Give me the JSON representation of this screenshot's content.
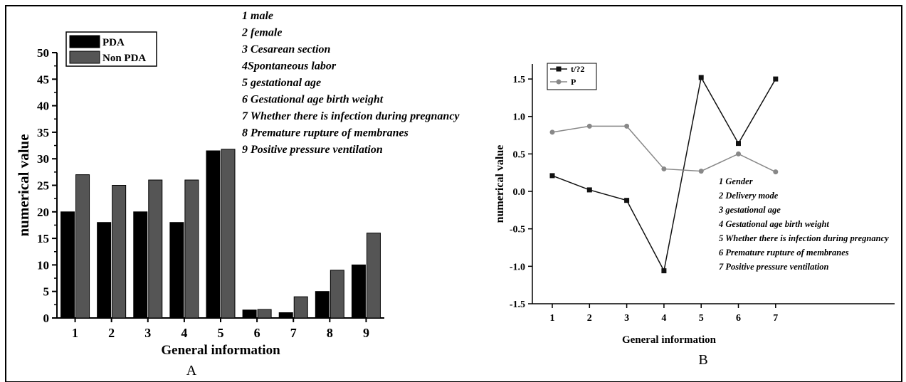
{
  "panel_labels": {
    "a": "A",
    "b": "B"
  },
  "chart_data": [
    {
      "type": "bar",
      "xlabel": "General information",
      "ylabel": "numerical value",
      "categories": [
        "1",
        "2",
        "3",
        "4",
        "5",
        "6",
        "7",
        "8",
        "9"
      ],
      "ylim": [
        0,
        50
      ],
      "yticks": [
        "0",
        "5",
        "10",
        "15",
        "20",
        "25",
        "30",
        "35",
        "40",
        "45",
        "50"
      ],
      "series": [
        {
          "name": "PDA",
          "color": "#000000",
          "values": [
            20,
            18,
            20,
            18,
            31.5,
            1.5,
            1,
            5,
            10
          ]
        },
        {
          "name": "Non PDA",
          "color": "#555555",
          "values": [
            27,
            25,
            26,
            26,
            31.8,
            1.6,
            4,
            9,
            16
          ]
        }
      ],
      "legend_position": "top-left",
      "annotations": [
        "1 male",
        "2 female",
        "3 Cesarean section",
        "4Spontaneous labor",
        "5 gestational age",
        "6 Gestational age birth weight",
        "7 Whether there is infection during pregnancy",
        "8 Premature rupture of membranes",
        "9 Positive pressure ventilation"
      ]
    },
    {
      "type": "line",
      "xlabel": "General information",
      "ylabel": "numerical value",
      "x": [
        "1",
        "2",
        "3",
        "4",
        "5",
        "6",
        "7"
      ],
      "ylim": [
        -1.5,
        1.7
      ],
      "yticks": [
        "-1.5",
        "-1.0",
        "-0.5",
        "0.0",
        "0.5",
        "1.0",
        "1.5"
      ],
      "series": [
        {
          "name": "t/?2",
          "color": "#111111",
          "marker": "square",
          "values": [
            0.21,
            0.02,
            -0.12,
            -1.06,
            1.52,
            0.64,
            1.5
          ]
        },
        {
          "name": "P",
          "color": "#888888",
          "marker": "circle",
          "values": [
            0.79,
            0.87,
            0.87,
            0.3,
            0.27,
            0.5,
            0.26
          ]
        }
      ],
      "legend_position": "top-left",
      "annotations": [
        "1 Gender",
        "2 Delivery mode",
        "3 gestational age",
        "4 Gestational age birth weight",
        "5 Whether there is infection during pregnancy",
        "6 Premature rupture of membranes",
        "7 Positive pressure ventilation"
      ]
    }
  ]
}
